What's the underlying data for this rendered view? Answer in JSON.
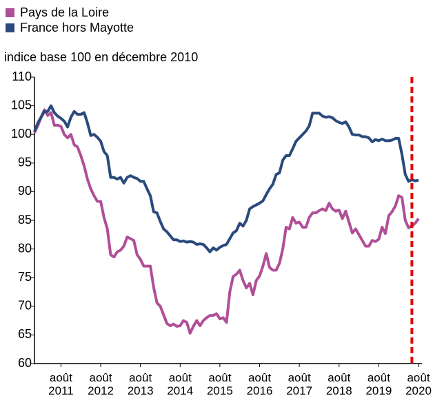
{
  "chart_data": {
    "type": "line",
    "subtitle": "indice base 100 en décembre 2010",
    "legend": "top-left",
    "categories": [
      null,
      null,
      null,
      null,
      null,
      null,
      null,
      null,
      "août\n2011",
      null,
      null,
      null,
      null,
      null,
      null,
      null,
      null,
      null,
      null,
      null,
      "août\n2012",
      null,
      null,
      null,
      null,
      null,
      null,
      null,
      null,
      null,
      null,
      null,
      "août\n2013",
      null,
      null,
      null,
      null,
      null,
      null,
      null,
      null,
      null,
      null,
      null,
      "août\n2014",
      null,
      null,
      null,
      null,
      null,
      null,
      null,
      null,
      null,
      null,
      null,
      "août\n2015",
      null,
      null,
      null,
      null,
      null,
      null,
      null,
      null,
      null,
      null,
      null,
      "août\n2016",
      null,
      null,
      null,
      null,
      null,
      null,
      null,
      null,
      null,
      null,
      null,
      "août\n2017",
      null,
      null,
      null,
      null,
      null,
      null,
      null,
      null,
      null,
      null,
      null,
      "août\n2018",
      null,
      null,
      null,
      null,
      null,
      null,
      null,
      null,
      null,
      null,
      null,
      "août\n2019",
      null,
      null,
      null,
      null,
      null,
      null,
      null,
      null,
      null,
      null,
      null,
      "août\n2020"
    ],
    "series": [
      {
        "name": "Pays de la Loire",
        "color": "#b04f98",
        "values": [
          100.3,
          101.5,
          103,
          104.3,
          103.3,
          103.8,
          101.6,
          101.6,
          101.4,
          100,
          99.4,
          100,
          98.2,
          97.8,
          96.3,
          94.5,
          92.2,
          90.5,
          89.3,
          88.3,
          88.3,
          85.5,
          83.5,
          79,
          78.6,
          79.5,
          79.8,
          80.5,
          82.1,
          81.8,
          81.5,
          79,
          78.2,
          77,
          77,
          77,
          73.3,
          70.6,
          70,
          68.5,
          67,
          66.6,
          66.9,
          66.5,
          66.6,
          67.5,
          67.2,
          65.3,
          66.5,
          67.5,
          66.6,
          67.5,
          68,
          68.4,
          68.4,
          68.7,
          67.8,
          68,
          67.2,
          72.5,
          75.2,
          75.6,
          76.3,
          74.5,
          73.2,
          74,
          72,
          74.5,
          75.3,
          77,
          79.2,
          76.8,
          76.3,
          76.3,
          77.5,
          80,
          83.8,
          83.5,
          85.5,
          84.5,
          84.7,
          83.8,
          83.8,
          85.5,
          86.3,
          86.3,
          86.7,
          87,
          86.7,
          88,
          87,
          86.6,
          86.8,
          85.3,
          86.6,
          84.7,
          82.8,
          83.5,
          82.5,
          81.5,
          80.5,
          80.5,
          81.5,
          81.3,
          81.7,
          83.8,
          82.7,
          85.8,
          86.5,
          87.5,
          89.3,
          89,
          85,
          83.7,
          84,
          84.5,
          85.3
        ]
      },
      {
        "name": "France hors Mayotte",
        "color": "#2a4a7c",
        "values": [
          100.5,
          102,
          103,
          104,
          104,
          105,
          103.8,
          103.2,
          102.8,
          102.3,
          101.3,
          103,
          104,
          103.5,
          103.5,
          103.8,
          102,
          99.8,
          100,
          99.5,
          98.8,
          97,
          96.3,
          92.5,
          92.5,
          92.2,
          92.5,
          91.5,
          92.5,
          92.8,
          92.5,
          92.3,
          91.8,
          91.8,
          90.5,
          89.3,
          86.5,
          86.3,
          84.8,
          83.5,
          83,
          82.3,
          81.6,
          81.6,
          81.3,
          81.4,
          81.2,
          81.3,
          81.2,
          80.8,
          80.9,
          80.8,
          80.2,
          79.5,
          80.2,
          79.8,
          80.3,
          80.6,
          80.8,
          81.8,
          82.8,
          83.2,
          84.5,
          84,
          85,
          87,
          87.4,
          87.7,
          88,
          88.4,
          89.5,
          90.5,
          91.3,
          93,
          93.3,
          95.5,
          96.3,
          96.3,
          97.5,
          98.8,
          99.4,
          100,
          100.6,
          101.5,
          103.7,
          103.7,
          103.7,
          103.2,
          103,
          103.1,
          102.9,
          102.4,
          102.1,
          101.9,
          102.2,
          101.3,
          100,
          99.9,
          99.9,
          99.6,
          99.6,
          99.4,
          98.7,
          99.1,
          98.9,
          99.2,
          98.9,
          98.9,
          99,
          99.3,
          99.3,
          96.5,
          93,
          91.8,
          92.1,
          91.9,
          92
        ]
      }
    ],
    "vline": {
      "category_index": 114,
      "color": "#e00000",
      "dashed": true
    },
    "ylim": [
      60,
      110
    ],
    "yticks": [
      60,
      65,
      70,
      75,
      80,
      85,
      90,
      95,
      100,
      105,
      110
    ]
  }
}
